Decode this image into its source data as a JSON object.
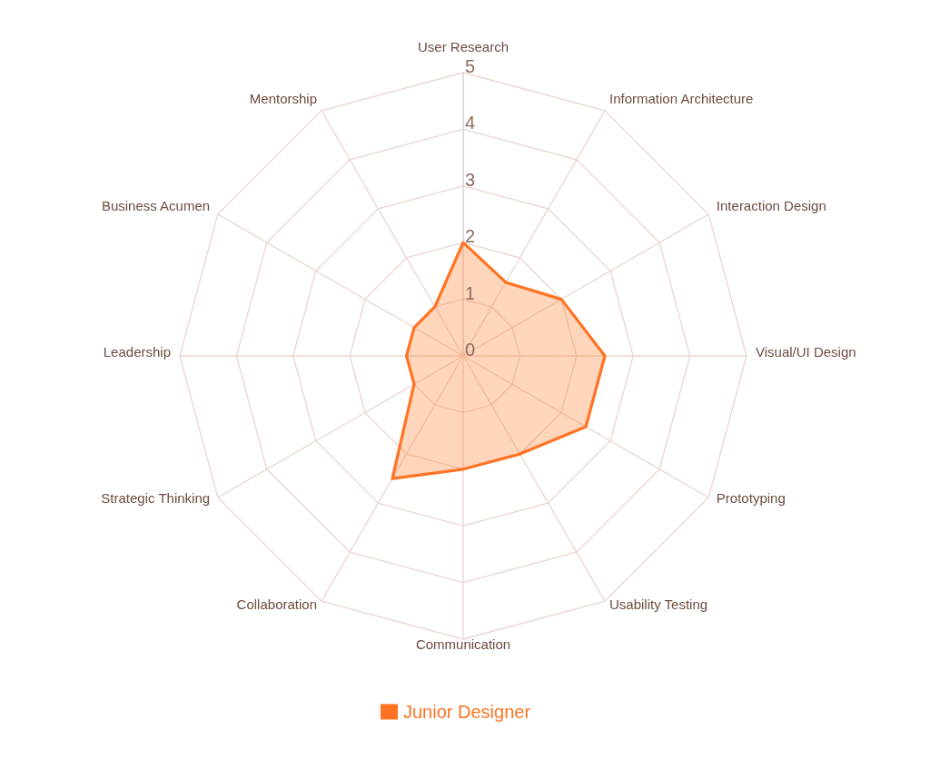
{
  "chart_data": {
    "type": "radar",
    "categories": [
      "User Research",
      "Information Architecture",
      "Interaction Design",
      "Visual/UI Design",
      "Prototyping",
      "Usability Testing",
      "Communication",
      "Collaboration",
      "Strategic Thinking",
      "Leadership",
      "Business Acumen",
      "Mentorship"
    ],
    "series": [
      {
        "name": "Junior Designer",
        "color": "#ff7322",
        "values": [
          2,
          1.5,
          2,
          2.5,
          2.5,
          2,
          2,
          2.5,
          1,
          1,
          1,
          1
        ]
      }
    ],
    "ylim": [
      0,
      5
    ],
    "yticks": [
      0,
      1,
      2,
      3,
      4,
      5
    ],
    "grid": true,
    "legend": "bottom"
  }
}
